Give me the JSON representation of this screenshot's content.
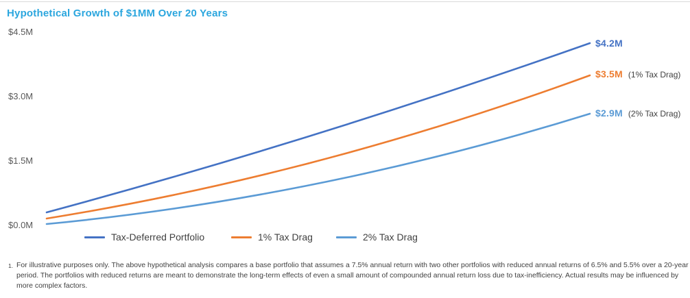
{
  "title": "Hypothetical Growth of $1MM Over 20 Years",
  "colors": {
    "title": "#2ba6de",
    "axis_label": "#595959",
    "text": "#404040",
    "divider": "#d9d9d9"
  },
  "chart_data": {
    "type": "line",
    "title": "Hypothetical Growth of $1MM Over 20 Years",
    "xlabel": "",
    "ylabel": "",
    "x_years": [
      0,
      1,
      2,
      3,
      4,
      5,
      6,
      7,
      8,
      9,
      10,
      11,
      12,
      13,
      14,
      15,
      16,
      17,
      18,
      19,
      20
    ],
    "xlim": [
      0,
      20
    ],
    "ylim": [
      0,
      4.5
    ],
    "units": "millions of dollars",
    "grid": false,
    "legend_position": "bottom",
    "y_ticks": [
      {
        "value": 4.5,
        "label": "$4.5M"
      },
      {
        "value": 3.0,
        "label": "$3.0M"
      },
      {
        "value": 1.5,
        "label": "$1.5M"
      },
      {
        "value": 0.0,
        "label": "$0.0M"
      }
    ],
    "series": [
      {
        "name": "Tax-Deferred Portfolio",
        "color": "#4472C4",
        "end_label": "$4.2M",
        "end_note": "",
        "values": [
          1.0,
          1.075,
          1.156,
          1.242,
          1.335,
          1.436,
          1.543,
          1.659,
          1.783,
          1.917,
          2.061,
          2.216,
          2.382,
          2.56,
          2.752,
          2.959,
          3.181,
          3.419,
          3.676,
          3.951,
          4.248
        ]
      },
      {
        "name": "1% Tax Drag",
        "color": "#ED7D31",
        "end_label": "$3.5M",
        "end_note": "(1% Tax Drag)",
        "values": [
          1.0,
          1.065,
          1.134,
          1.208,
          1.286,
          1.37,
          1.459,
          1.554,
          1.655,
          1.763,
          1.877,
          1.999,
          2.129,
          2.267,
          2.415,
          2.572,
          2.739,
          2.917,
          3.107,
          3.309,
          3.524
        ]
      },
      {
        "name": "2% Tax Drag",
        "color": "#5B9BD5",
        "end_label": "$2.9M",
        "end_note": "(2% Tax Drag)",
        "values": [
          1.0,
          1.055,
          1.113,
          1.174,
          1.239,
          1.307,
          1.379,
          1.455,
          1.535,
          1.619,
          1.708,
          1.802,
          1.901,
          2.006,
          2.116,
          2.232,
          2.355,
          2.485,
          2.621,
          2.766,
          2.918
        ]
      }
    ]
  },
  "footnote": {
    "marker": "1.",
    "text": "For illustrative purposes only. The above hypothetical analysis compares a base portfolio that assumes a 7.5% annual return with two other portfolios with reduced annual returns of 6.5% and 5.5% over a 20-year period. The portfolios with reduced returns are meant to demonstrate the long-term effects of even a small amount of compounded annual return loss due to tax-inefficiency. Actual results may be influenced by more complex factors."
  }
}
